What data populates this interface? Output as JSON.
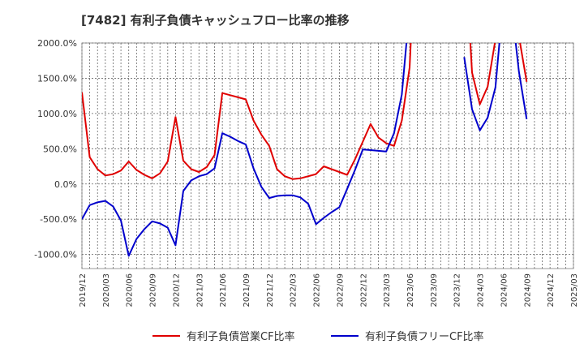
{
  "chart_data": {
    "type": "line",
    "title": "[7482]  有利子負債キャッシュフロー比率の推移",
    "xlabel": "",
    "ylabel": "",
    "ylim": [
      -1200,
      2000
    ],
    "y_ticks": [
      {
        "value": 2000,
        "label": "2000.0%"
      },
      {
        "value": 1500,
        "label": "1500.0%"
      },
      {
        "value": 1000,
        "label": "1000.0%"
      },
      {
        "value": 500,
        "label": "500.0%"
      },
      {
        "value": 0,
        "label": "0.0%"
      },
      {
        "value": -500,
        "label": "-500.0%"
      },
      {
        "value": -1000,
        "label": "-1000.0%"
      }
    ],
    "x_ticks": [
      "2019/12",
      "2020/03",
      "2020/06",
      "2020/09",
      "2020/12",
      "2021/03",
      "2021/06",
      "2021/09",
      "2021/12",
      "2022/03",
      "2022/06",
      "2022/09",
      "2022/12",
      "2023/03",
      "2023/06",
      "2023/09",
      "2023/12",
      "2024/03",
      "2024/06",
      "2024/09",
      "2024/12",
      "2025/03"
    ],
    "grid": true,
    "legend_position": "bottom",
    "x": [
      "2019/12",
      "2020/01",
      "2020/02",
      "2020/03",
      "2020/04",
      "2020/05",
      "2020/06",
      "2020/07",
      "2020/08",
      "2020/09",
      "2020/10",
      "2020/11",
      "2020/12",
      "2021/01",
      "2021/02",
      "2021/03",
      "2021/04",
      "2021/05",
      "2021/06",
      "2021/07",
      "2021/08",
      "2021/09",
      "2021/10",
      "2021/11",
      "2021/12",
      "2022/01",
      "2022/02",
      "2022/03",
      "2022/04",
      "2022/05",
      "2022/06",
      "2022/07",
      "2022/08",
      "2022/09",
      "2022/10",
      "2022/11",
      "2022/12",
      "2023/01",
      "2023/02",
      "2023/03",
      "2023/04",
      "2023/05",
      "2023/06",
      "2023/07",
      "2023/08",
      "2023/09",
      "2023/10",
      "2023/11",
      "2023/12",
      "2024/01",
      "2024/02",
      "2024/03",
      "2024/04",
      "2024/05",
      "2024/06",
      "2024/07",
      "2024/08",
      "2024/09"
    ],
    "series": [
      {
        "name": "有利子負債営業CF比率",
        "color": "#e00000",
        "values": [
          1300,
          380,
          210,
          120,
          140,
          190,
          320,
          200,
          130,
          80,
          150,
          320,
          950,
          330,
          210,
          170,
          240,
          410,
          1290,
          1260,
          1230,
          1200,
          900,
          700,
          540,
          210,
          110,
          70,
          80,
          110,
          140,
          250,
          210,
          170,
          130,
          350,
          600,
          850,
          660,
          580,
          540,
          900,
          1650,
          4000,
          null,
          null,
          null,
          null,
          null,
          3500,
          1580,
          1130,
          1380,
          2050,
          2500,
          2500,
          2100,
          1450
        ]
      },
      {
        "name": "有利子負債フリーCF比率",
        "color": "#0000cc",
        "values": [
          -500,
          -300,
          -260,
          -240,
          -320,
          -520,
          -1020,
          -780,
          -640,
          -530,
          -560,
          -620,
          -870,
          -100,
          50,
          110,
          140,
          220,
          720,
          670,
          610,
          560,
          220,
          -40,
          -200,
          -170,
          -160,
          -160,
          -190,
          -280,
          -570,
          -480,
          -400,
          -330,
          -70,
          200,
          490,
          480,
          470,
          460,
          720,
          1270,
          2500,
          null,
          null,
          null,
          null,
          null,
          null,
          1800,
          1060,
          760,
          940,
          1370,
          2600,
          2600,
          1600,
          920
        ]
      }
    ]
  }
}
